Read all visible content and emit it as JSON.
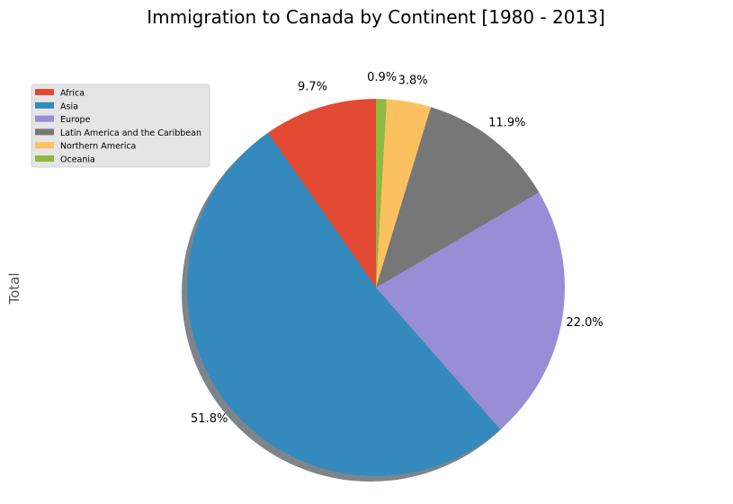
{
  "chart_data": {
    "type": "pie",
    "title": "Immigration to Canada by Continent [1980 - 2013]",
    "ylabel": "Total",
    "categories": [
      "Africa",
      "Asia",
      "Europe",
      "Latin America and the Caribbean",
      "Northern America",
      "Oceania"
    ],
    "values": [
      9.7,
      51.8,
      22.0,
      11.9,
      3.8,
      0.9
    ],
    "value_labels": [
      "9.7%",
      "51.8%",
      "22.0%",
      "11.9%",
      "3.8%",
      "0.9%"
    ],
    "colors": [
      "#E24A33",
      "#348ABD",
      "#988ED5",
      "#777777",
      "#FBC15E",
      "#8EBA42"
    ],
    "start_angle_deg": 90,
    "direction": "counterclockwise",
    "shadow": true,
    "legend": {
      "position": "upper-left",
      "background": "#E5E5E5"
    }
  }
}
